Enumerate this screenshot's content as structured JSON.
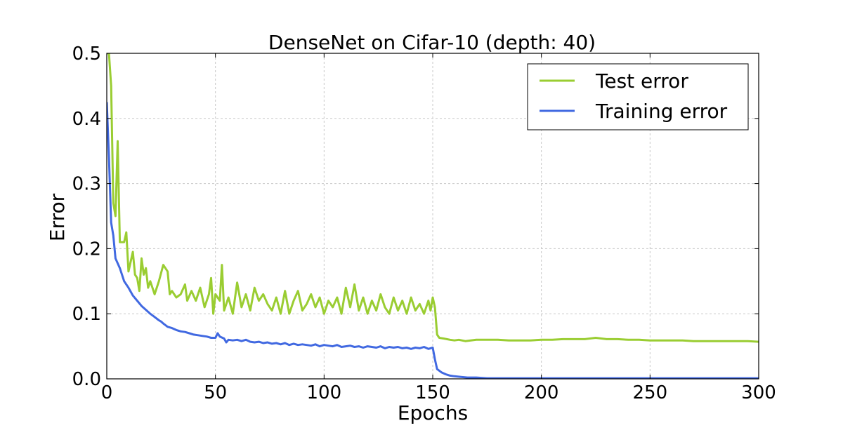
{
  "chart_data": {
    "type": "line",
    "title": "DenseNet on Cifar-10 (depth: 40)",
    "xlabel": "Epochs",
    "ylabel": "Error",
    "xlim": [
      0,
      300
    ],
    "ylim": [
      0.0,
      0.5
    ],
    "xticks": [
      0,
      50,
      100,
      150,
      200,
      250,
      300
    ],
    "yticks": [
      0.0,
      0.1,
      0.2,
      0.3,
      0.4,
      0.5
    ],
    "xtick_labels": [
      "0",
      "50",
      "100",
      "150",
      "200",
      "250",
      "300"
    ],
    "ytick_labels": [
      "0.0",
      "0.1",
      "0.2",
      "0.3",
      "0.4",
      "0.5"
    ],
    "grid": true,
    "legend_position": "top-right",
    "series": [
      {
        "name": "Test error",
        "color": "#9acd32",
        "points": [
          [
            0,
            0.5
          ],
          [
            1,
            0.5
          ],
          [
            2,
            0.45
          ],
          [
            3,
            0.27
          ],
          [
            4,
            0.25
          ],
          [
            5,
            0.365
          ],
          [
            6,
            0.21
          ],
          [
            7,
            0.21
          ],
          [
            8,
            0.21
          ],
          [
            9,
            0.225
          ],
          [
            10,
            0.165
          ],
          [
            11,
            0.18
          ],
          [
            12,
            0.195
          ],
          [
            13,
            0.16
          ],
          [
            14,
            0.155
          ],
          [
            15,
            0.135
          ],
          [
            16,
            0.185
          ],
          [
            17,
            0.16
          ],
          [
            18,
            0.17
          ],
          [
            19,
            0.14
          ],
          [
            20,
            0.15
          ],
          [
            22,
            0.13
          ],
          [
            24,
            0.15
          ],
          [
            26,
            0.175
          ],
          [
            28,
            0.165
          ],
          [
            29,
            0.13
          ],
          [
            30,
            0.135
          ],
          [
            32,
            0.125
          ],
          [
            34,
            0.13
          ],
          [
            36,
            0.145
          ],
          [
            37,
            0.12
          ],
          [
            39,
            0.135
          ],
          [
            41,
            0.12
          ],
          [
            43,
            0.14
          ],
          [
            45,
            0.11
          ],
          [
            47,
            0.13
          ],
          [
            48,
            0.155
          ],
          [
            49,
            0.1
          ],
          [
            50,
            0.13
          ],
          [
            52,
            0.12
          ],
          [
            53,
            0.175
          ],
          [
            54,
            0.105
          ],
          [
            56,
            0.125
          ],
          [
            58,
            0.1
          ],
          [
            60,
            0.148
          ],
          [
            62,
            0.11
          ],
          [
            64,
            0.13
          ],
          [
            66,
            0.105
          ],
          [
            68,
            0.14
          ],
          [
            70,
            0.12
          ],
          [
            72,
            0.13
          ],
          [
            74,
            0.115
          ],
          [
            76,
            0.105
          ],
          [
            78,
            0.125
          ],
          [
            80,
            0.1
          ],
          [
            82,
            0.135
          ],
          [
            84,
            0.1
          ],
          [
            86,
            0.12
          ],
          [
            88,
            0.135
          ],
          [
            90,
            0.105
          ],
          [
            92,
            0.115
          ],
          [
            94,
            0.13
          ],
          [
            96,
            0.11
          ],
          [
            98,
            0.125
          ],
          [
            100,
            0.1
          ],
          [
            102,
            0.12
          ],
          [
            104,
            0.11
          ],
          [
            106,
            0.125
          ],
          [
            108,
            0.1
          ],
          [
            110,
            0.14
          ],
          [
            112,
            0.11
          ],
          [
            114,
            0.145
          ],
          [
            116,
            0.105
          ],
          [
            118,
            0.125
          ],
          [
            120,
            0.1
          ],
          [
            122,
            0.12
          ],
          [
            124,
            0.105
          ],
          [
            126,
            0.13
          ],
          [
            128,
            0.11
          ],
          [
            130,
            0.1
          ],
          [
            132,
            0.125
          ],
          [
            134,
            0.105
          ],
          [
            136,
            0.12
          ],
          [
            138,
            0.1
          ],
          [
            140,
            0.125
          ],
          [
            142,
            0.105
          ],
          [
            144,
            0.115
          ],
          [
            146,
            0.1
          ],
          [
            148,
            0.12
          ],
          [
            149,
            0.105
          ],
          [
            150,
            0.125
          ],
          [
            151,
            0.11
          ],
          [
            152,
            0.068
          ],
          [
            153,
            0.063
          ],
          [
            155,
            0.062
          ],
          [
            158,
            0.06
          ],
          [
            160,
            0.059
          ],
          [
            162,
            0.06
          ],
          [
            165,
            0.058
          ],
          [
            170,
            0.06
          ],
          [
            175,
            0.06
          ],
          [
            180,
            0.06
          ],
          [
            185,
            0.059
          ],
          [
            190,
            0.059
          ],
          [
            195,
            0.059
          ],
          [
            200,
            0.06
          ],
          [
            205,
            0.06
          ],
          [
            210,
            0.061
          ],
          [
            215,
            0.061
          ],
          [
            220,
            0.061
          ],
          [
            225,
            0.063
          ],
          [
            230,
            0.061
          ],
          [
            235,
            0.061
          ],
          [
            240,
            0.06
          ],
          [
            245,
            0.06
          ],
          [
            250,
            0.059
          ],
          [
            255,
            0.059
          ],
          [
            260,
            0.059
          ],
          [
            265,
            0.059
          ],
          [
            270,
            0.058
          ],
          [
            275,
            0.058
          ],
          [
            280,
            0.058
          ],
          [
            285,
            0.058
          ],
          [
            290,
            0.058
          ],
          [
            295,
            0.058
          ],
          [
            300,
            0.057
          ]
        ]
      },
      {
        "name": "Training error",
        "color": "#4169e1",
        "points": [
          [
            0,
            0.425
          ],
          [
            1,
            0.34
          ],
          [
            2,
            0.24
          ],
          [
            3,
            0.22
          ],
          [
            4,
            0.185
          ],
          [
            6,
            0.17
          ],
          [
            8,
            0.15
          ],
          [
            10,
            0.14
          ],
          [
            12,
            0.128
          ],
          [
            14,
            0.12
          ],
          [
            16,
            0.112
          ],
          [
            18,
            0.106
          ],
          [
            20,
            0.1
          ],
          [
            22,
            0.095
          ],
          [
            24,
            0.09
          ],
          [
            25,
            0.088
          ],
          [
            26,
            0.085
          ],
          [
            28,
            0.08
          ],
          [
            30,
            0.078
          ],
          [
            32,
            0.075
          ],
          [
            34,
            0.073
          ],
          [
            36,
            0.072
          ],
          [
            38,
            0.07
          ],
          [
            40,
            0.068
          ],
          [
            42,
            0.067
          ],
          [
            44,
            0.066
          ],
          [
            46,
            0.065
          ],
          [
            48,
            0.063
          ],
          [
            50,
            0.063
          ],
          [
            51,
            0.07
          ],
          [
            52,
            0.065
          ],
          [
            54,
            0.062
          ],
          [
            55,
            0.056
          ],
          [
            56,
            0.06
          ],
          [
            58,
            0.059
          ],
          [
            60,
            0.06
          ],
          [
            62,
            0.058
          ],
          [
            64,
            0.06
          ],
          [
            66,
            0.057
          ],
          [
            68,
            0.056
          ],
          [
            70,
            0.057
          ],
          [
            72,
            0.055
          ],
          [
            74,
            0.056
          ],
          [
            76,
            0.054
          ],
          [
            78,
            0.055
          ],
          [
            80,
            0.053
          ],
          [
            82,
            0.055
          ],
          [
            84,
            0.052
          ],
          [
            86,
            0.054
          ],
          [
            88,
            0.052
          ],
          [
            90,
            0.053
          ],
          [
            92,
            0.052
          ],
          [
            94,
            0.051
          ],
          [
            96,
            0.053
          ],
          [
            98,
            0.05
          ],
          [
            100,
            0.052
          ],
          [
            102,
            0.051
          ],
          [
            104,
            0.05
          ],
          [
            106,
            0.052
          ],
          [
            108,
            0.049
          ],
          [
            110,
            0.05
          ],
          [
            112,
            0.051
          ],
          [
            114,
            0.049
          ],
          [
            116,
            0.05
          ],
          [
            118,
            0.048
          ],
          [
            120,
            0.05
          ],
          [
            122,
            0.049
          ],
          [
            124,
            0.048
          ],
          [
            126,
            0.05
          ],
          [
            128,
            0.047
          ],
          [
            130,
            0.049
          ],
          [
            132,
            0.048
          ],
          [
            134,
            0.049
          ],
          [
            136,
            0.047
          ],
          [
            138,
            0.048
          ],
          [
            140,
            0.046
          ],
          [
            142,
            0.048
          ],
          [
            144,
            0.047
          ],
          [
            146,
            0.049
          ],
          [
            148,
            0.046
          ],
          [
            150,
            0.048
          ],
          [
            151,
            0.03
          ],
          [
            152,
            0.015
          ],
          [
            154,
            0.01
          ],
          [
            156,
            0.007
          ],
          [
            158,
            0.005
          ],
          [
            160,
            0.004
          ],
          [
            163,
            0.003
          ],
          [
            166,
            0.002
          ],
          [
            170,
            0.002
          ],
          [
            175,
            0.001
          ],
          [
            180,
            0.001
          ],
          [
            190,
            0.001
          ],
          [
            200,
            0.001
          ],
          [
            220,
            0.001
          ],
          [
            240,
            0.001
          ],
          [
            260,
            0.001
          ],
          [
            280,
            0.001
          ],
          [
            300,
            0.001
          ]
        ]
      }
    ]
  }
}
